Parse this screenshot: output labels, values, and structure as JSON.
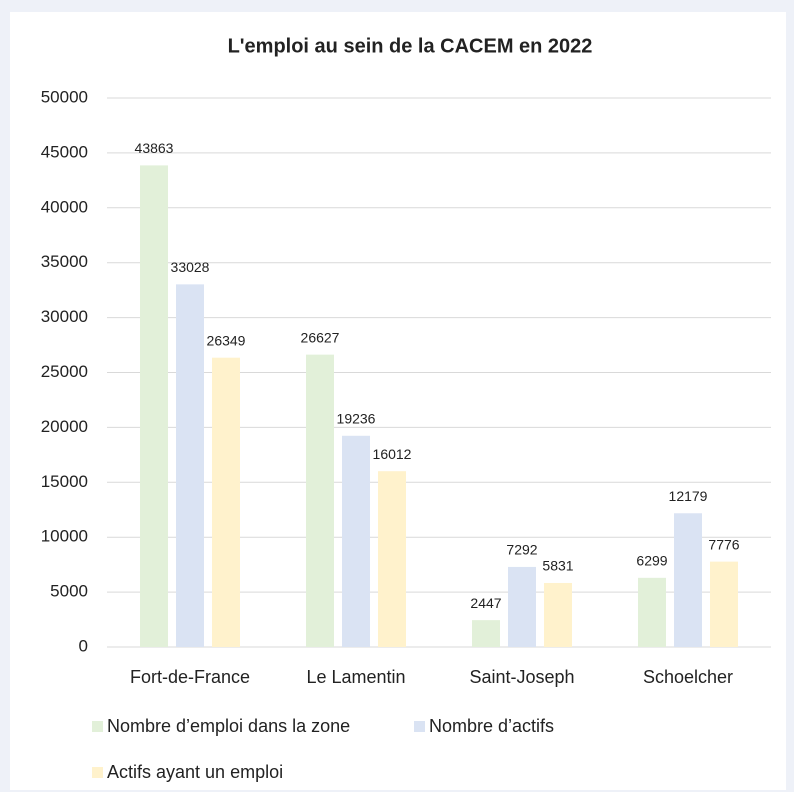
{
  "chart_data": {
    "type": "bar",
    "title": "L'emploi au sein de la CACEM en 2022",
    "categories": [
      "Fort-de-France",
      "Le Lamentin",
      "Saint-Joseph",
      "Schoelcher"
    ],
    "series": [
      {
        "name": "Nombre d’emploi dans la zone",
        "color": "#e2f0d9",
        "values": [
          43863,
          26627,
          2447,
          6299
        ]
      },
      {
        "name": "Nombre d’actifs",
        "color": "#dae3f3",
        "values": [
          33028,
          19236,
          7292,
          12179
        ]
      },
      {
        "name": "Actifs ayant un emploi",
        "color": "#fff2cc",
        "values": [
          26349,
          16012,
          5831,
          7776
        ]
      }
    ],
    "ylim": [
      0,
      50000
    ],
    "yticks": [
      0,
      5000,
      10000,
      15000,
      20000,
      25000,
      30000,
      35000,
      40000,
      45000,
      50000
    ],
    "grid": true,
    "legend": "bottom"
  }
}
